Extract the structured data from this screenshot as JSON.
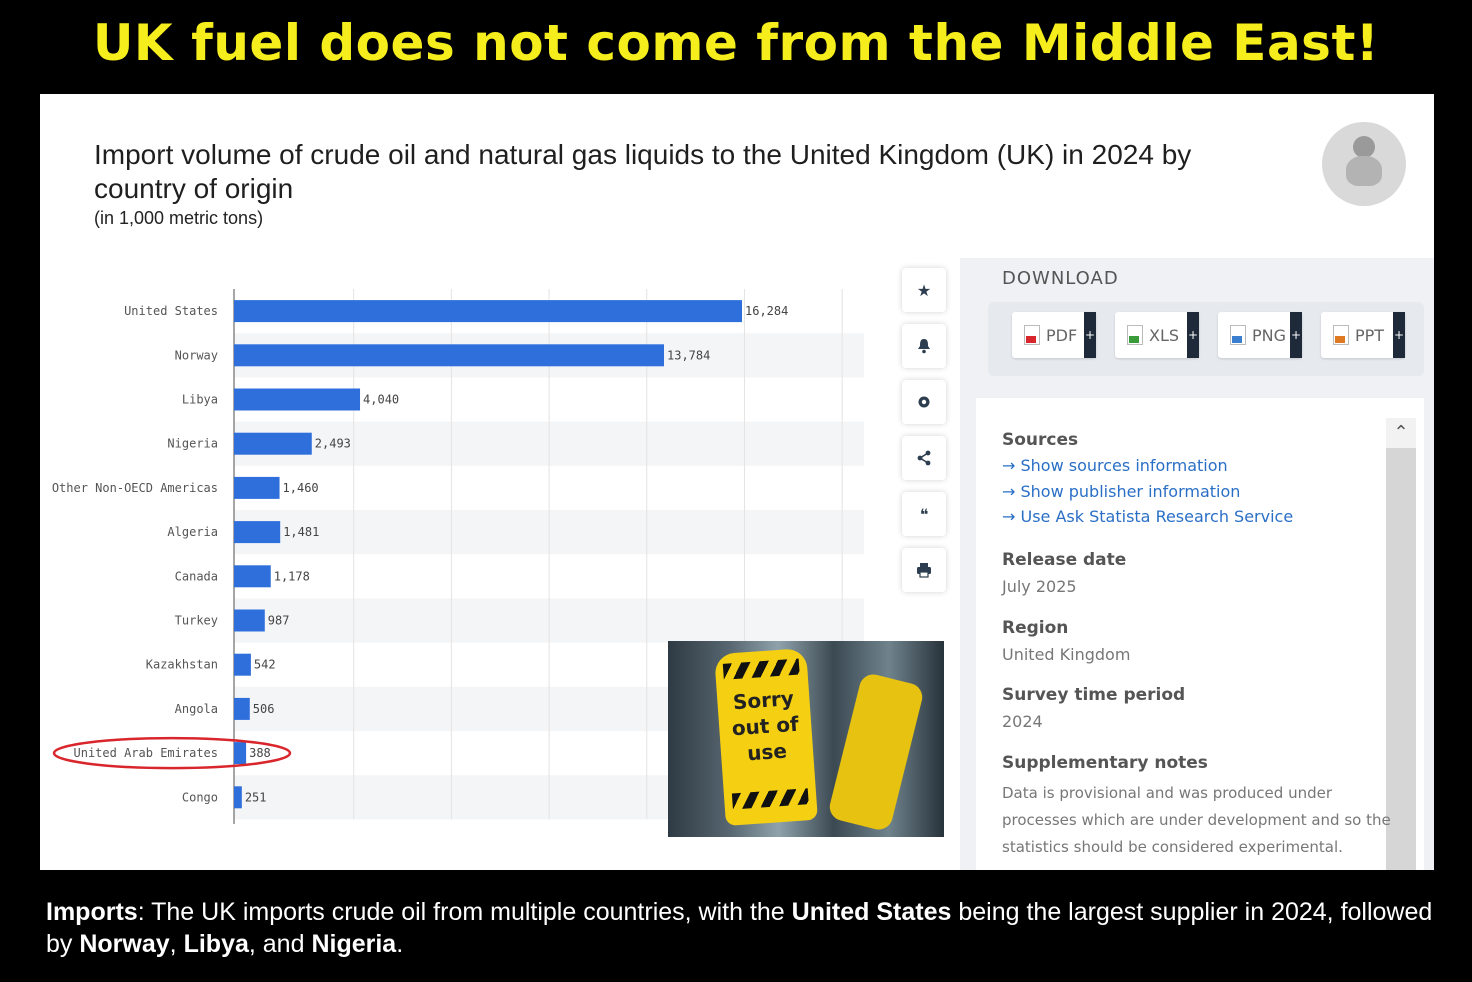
{
  "headline": "UK fuel does not come from the Middle East!",
  "chart_data": {
    "type": "bar",
    "orientation": "horizontal",
    "title": "Import volume of crude oil and natural gas liquids to the United Kingdom (UK) in 2024 by country of origin",
    "subtitle": "(in 1,000 metric tons)",
    "categories": [
      "United States",
      "Norway",
      "Libya",
      "Nigeria",
      "Other Non-OECD Americas",
      "Algeria",
      "Canada",
      "Turkey",
      "Kazakhstan",
      "Angola",
      "United Arab Emirates",
      "Congo"
    ],
    "value_labels": [
      "16,284",
      "13,784",
      "4,040",
      "2,493",
      "1,460",
      "1,481",
      "1,178",
      "987",
      "542",
      "506",
      "388",
      "251"
    ],
    "values": [
      16284,
      13784,
      4040,
      2493,
      1460,
      1481,
      1178,
      987,
      542,
      506,
      388,
      251
    ],
    "highlighted_category": "United Arab Emirates",
    "bar_color": "#2f6fdc",
    "highlight_ring_color": "#d9262c",
    "grid": true
  },
  "toolbar": {
    "icons": [
      "star-icon",
      "bell-icon",
      "gear-icon",
      "share-icon",
      "quote-icon",
      "print-icon"
    ]
  },
  "download": {
    "title": "DOWNLOAD",
    "buttons": [
      {
        "label": "PDF",
        "color": "#d9262c"
      },
      {
        "label": "XLS",
        "color": "#3a9b3a"
      },
      {
        "label": "PNG",
        "color": "#3a7fcf"
      },
      {
        "label": "PPT",
        "color": "#e07a22"
      }
    ]
  },
  "info": {
    "sources_heading": "Sources",
    "links": [
      "Show sources information",
      "Show publisher information",
      "Use Ask Statista Research Service"
    ],
    "release_heading": "Release date",
    "release_value": "July 2025",
    "region_heading": "Region",
    "region_value": "United Kingdom",
    "survey_heading": "Survey time period",
    "survey_value": "2024",
    "notes_heading": "Supplementary notes",
    "notes_value": "Data is provisional and was produced under processes which are under development and so the statistics should be considered experimental."
  },
  "photo": {
    "sign_text": "Sorry\nout of\nuse"
  },
  "caption": {
    "lead": "Imports",
    "text1": ": The UK imports crude oil from multiple countries, with the ",
    "b1": "United States",
    "text2": " being the largest supplier in 2024, followed by ",
    "b2": "Norway",
    "text3": ", ",
    "b3": "Libya",
    "text4": ", and ",
    "b4": "Nigeria",
    "text5": "."
  }
}
